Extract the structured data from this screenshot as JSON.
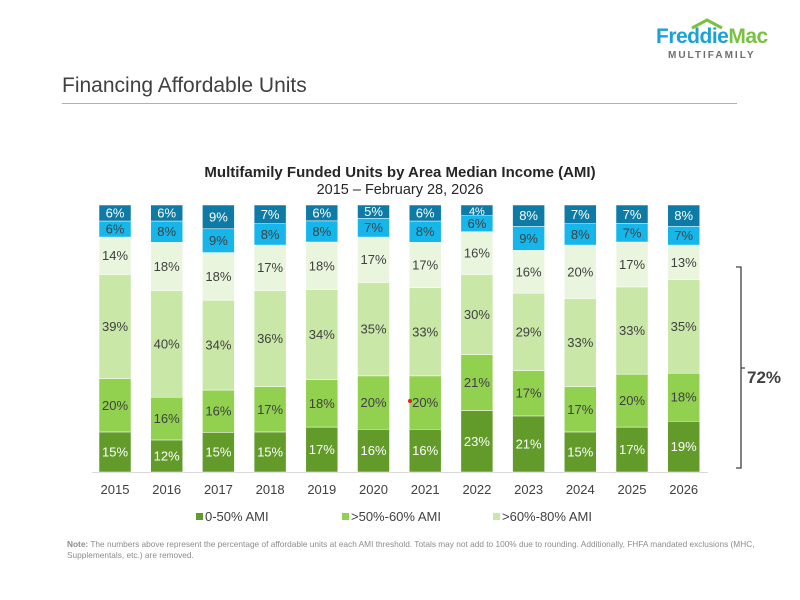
{
  "logo": {
    "part1": "Freddie",
    "part2": "Mac",
    "sub": "MULTIFAMILY"
  },
  "page_title": "Financing Affordable Units",
  "chart_data": {
    "type": "bar",
    "stacked": true,
    "title": "Multifamily Funded Units by Area Median Income (AMI)",
    "subtitle": "2015 – February 28, 2026",
    "xlabel": "",
    "ylabel": "",
    "ylim": [
      0,
      100
    ],
    "grid": false,
    "legend_placement": "bottom",
    "categories": [
      "2015",
      "2016",
      "2017",
      "2018",
      "2019",
      "2020",
      "2021",
      "2022",
      "2023",
      "2024",
      "2025",
      "2026"
    ],
    "series": [
      {
        "name": "0-50% AMI",
        "color": "#629b2a",
        "label_color": "#ffffff",
        "values": [
          15,
          12,
          15,
          15,
          17,
          16,
          16,
          23,
          21,
          15,
          17,
          19
        ]
      },
      {
        "name": ">50%-60% AMI",
        "color": "#92d050",
        "label_color": "#404040",
        "values": [
          20,
          16,
          16,
          17,
          18,
          20,
          20,
          21,
          17,
          17,
          20,
          18
        ]
      },
      {
        "name": ">60%-80% AMI",
        "color": "#c9e7a7",
        "label_color": "#404040",
        "values": [
          39,
          40,
          34,
          36,
          34,
          35,
          33,
          30,
          29,
          33,
          33,
          35
        ]
      },
      {
        "color": "#eaf5de",
        "label_color": "#404040",
        "values": [
          14,
          18,
          18,
          17,
          18,
          17,
          17,
          16,
          16,
          20,
          17,
          13
        ]
      },
      {
        "color": "#16b5ea",
        "label_color": "#404040",
        "values": [
          6,
          8,
          9,
          8,
          8,
          7,
          8,
          6,
          9,
          8,
          7,
          7
        ]
      },
      {
        "color": "#0d7ba6",
        "label_color": "#ffffff",
        "values": [
          6,
          6,
          9,
          7,
          6,
          5,
          6,
          4,
          8,
          7,
          7,
          8
        ]
      }
    ],
    "annotation": "72%"
  },
  "note": {
    "label": "Note:",
    "text": " The numbers above represent the percentage of affordable units at each AMI threshold. Totals may not add to 100% due to rounding. Additionally, FHFA mandated exclusions (MHC, Supplementals, etc.) are removed."
  }
}
